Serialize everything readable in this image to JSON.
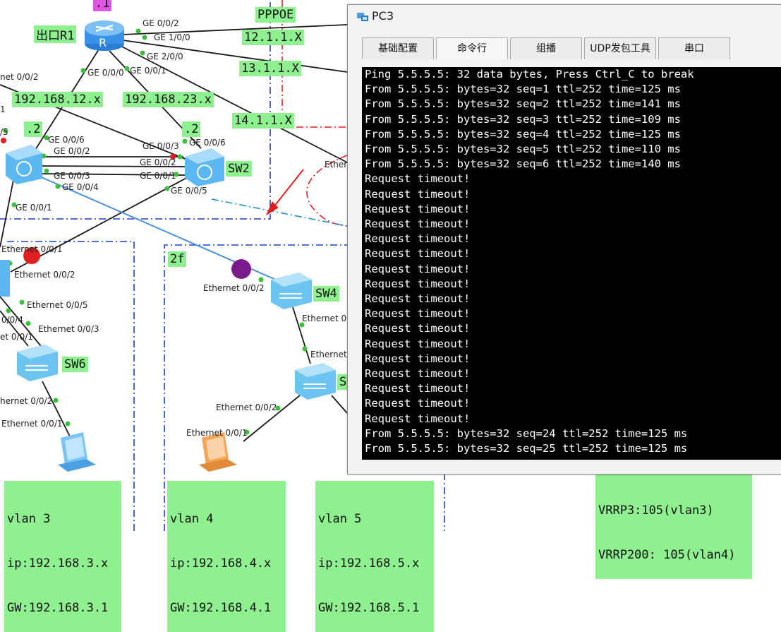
{
  "topology": {
    "router": {
      "name": "出口R1",
      "ip_suffix": ".1"
    },
    "devices": {
      "sw2": "SW2",
      "sw4": "SW4",
      "sw6": "SW6",
      "sw_partial": "S"
    },
    "links": {
      "pppoe": "PPPOE",
      "net12": "12.1.1.X",
      "net13": "13.1.1.X",
      "net14": "14.1.1.X",
      "net192_12": "192.168.12.x",
      "net192_23": "192.168.23.x",
      "sw1_suffix": ".2",
      "sw2_suffix": ".2"
    },
    "areas": {
      "floor2": "2f"
    },
    "ports": {
      "r1_g002": "GE 0/0/2",
      "r1_g100": "GE 1/0/0",
      "r1_g200": "GE 2/0/0",
      "r1_g000": "GE 0/0/0",
      "r1_g001": "GE 0/0/1",
      "left_eth002": "net 0/0/2",
      "sw1_g006": "GE 0/0/6",
      "sw1_g002": "GE 0/0/2",
      "sw1_g003": "GE 0/0/3",
      "sw1_g004": "GE 0/0/4",
      "sw1_g001": "GE 0/0/1",
      "sw2_g003": "GE 0/0/3",
      "sw2_g006": "GE 0/0/6",
      "sw2_g002": "GE 0/0/2",
      "sw2_g001": "GE 0/0/1",
      "sw2_g005": "GE 0/0/5",
      "left_5": "/5",
      "left_1": "1",
      "ether_partial": "Ethern",
      "e001_a": "Ethernet 0/0/1",
      "e002_a": "Ethernet 0/0/2",
      "e005": "Ethernet 0/0/5",
      "e004": "0/0/4",
      "e003": "Ethernet 0/0/3",
      "e001_b": "et 0/0/1",
      "sw6_e002": "hernet 0/0/2",
      "sw6_e001": "Ethernet 0/0/1",
      "sw4_e002": "Ethernet 0/0/2",
      "sw4_e_right": "Ethernet 0",
      "sw5_e_top": "Ethernet",
      "pc4_e002": "Ethernet 0/0/2",
      "pc4_e001": "Ethernet 0/0/1"
    },
    "vlans": [
      {
        "vlan": "vlan 3",
        "ip": "ip:192.168.3.x",
        "gw": "GW:192.168.3.1"
      },
      {
        "vlan": "vlan 4",
        "ip": "ip:192.168.4.x",
        "gw": "GW:192.168.4.1"
      },
      {
        "vlan": "vlan 5",
        "ip": "ip:192.168.5.x",
        "gw": "GW:192.168.5.1"
      }
    ],
    "vrrp": {
      "line1": "VRRP3:105(vlan3)",
      "line2": "VRRP200: 105(vlan4)"
    },
    "colors": {
      "label_bg": "#8ff08f",
      "link": "#1a1a1a",
      "vlan_link": "#4a90e2",
      "area_blue": "#1f3fcf",
      "area_red": "#e02020",
      "arrow": "#e02020"
    }
  },
  "window": {
    "title": "PC3",
    "tabs": [
      "基础配置",
      "命令行",
      "组播",
      "UDP发包工具",
      "串口"
    ],
    "active_tab": "命令行",
    "console_lines": [
      "Ping 5.5.5.5: 32 data bytes, Press Ctrl_C to break",
      "From 5.5.5.5: bytes=32 seq=1 ttl=252 time=125 ms",
      "From 5.5.5.5: bytes=32 seq=2 ttl=252 time=141 ms",
      "From 5.5.5.5: bytes=32 seq=3 ttl=252 time=109 ms",
      "From 5.5.5.5: bytes=32 seq=4 ttl=252 time=125 ms",
      "From 5.5.5.5: bytes=32 seq=5 ttl=252 time=110 ms",
      "From 5.5.5.5: bytes=32 seq=6 ttl=252 time=140 ms",
      "Request timeout!",
      "Request timeout!",
      "Request timeout!",
      "Request timeout!",
      "Request timeout!",
      "Request timeout!",
      "Request timeout!",
      "Request timeout!",
      "Request timeout!",
      "Request timeout!",
      "Request timeout!",
      "Request timeout!",
      "Request timeout!",
      "Request timeout!",
      "Request timeout!",
      "Request timeout!",
      "Request timeout!",
      "From 5.5.5.5: bytes=32 seq=24 ttl=252 time=125 ms",
      "From 5.5.5.5: bytes=32 seq=25 ttl=252 time=125 ms"
    ]
  }
}
